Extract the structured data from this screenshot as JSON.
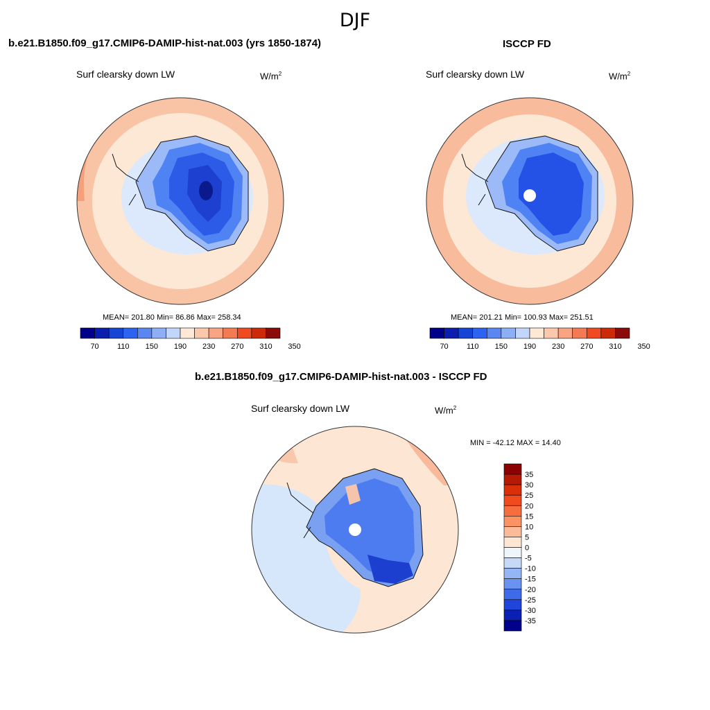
{
  "season": "DJF",
  "panels": [
    {
      "title": "b.e21.B1850.f09_g17.CMIP6-DAMIP-hist-nat.003 (yrs 1850-1874)",
      "variable": "Surf clearsky down LW",
      "units_base": "W/m",
      "units_exp": "2",
      "stats": "MEAN= 201.80  Min=  86.86  Max= 258.34"
    },
    {
      "title": "ISCCP FD",
      "variable": "Surf clearsky down LW",
      "units_base": "W/m",
      "units_exp": "2",
      "stats": "MEAN= 201.21  Min= 100.93  Max= 251.51"
    },
    {
      "title": "b.e21.B1850.f09_g17.CMIP6-DAMIP-hist-nat.003 - ISCCP FD",
      "variable": "Surf clearsky down LW",
      "units_base": "W/m",
      "units_exp": "2",
      "stats": "MIN = -42.12 MAX =  14.40"
    }
  ],
  "chart_data": [
    {
      "type": "heatmap",
      "projection": "south-polar-stereographic",
      "title": "b.e21.B1850.f09_g17.CMIP6-DAMIP-hist-nat.003 (yrs 1850-1874)",
      "variable": "Surf clearsky down LW",
      "units": "W/m2",
      "mean": 201.8,
      "min": 86.86,
      "max": 258.34,
      "colorbar_labels": [
        "70",
        "110",
        "150",
        "190",
        "230",
        "270",
        "310",
        "350"
      ],
      "colorbar_colors": [
        "#00008a",
        "#0a1fb0",
        "#1645d6",
        "#2c63f0",
        "#5a86f2",
        "#8eaef6",
        "#c2d6fb",
        "#ffe9d6",
        "#fcc8ac",
        "#f8a482",
        "#f47a53",
        "#ef4a20",
        "#cd2a0a",
        "#8b0a0a"
      ]
    },
    {
      "type": "heatmap",
      "projection": "south-polar-stereographic",
      "title": "ISCCP FD",
      "variable": "Surf clearsky down LW",
      "units": "W/m2",
      "mean": 201.21,
      "min": 100.93,
      "max": 251.51,
      "colorbar_labels": [
        "70",
        "110",
        "150",
        "190",
        "230",
        "270",
        "310",
        "350"
      ],
      "colorbar_colors": [
        "#00008a",
        "#0a1fb0",
        "#1645d6",
        "#2c63f0",
        "#5a86f2",
        "#8eaef6",
        "#c2d6fb",
        "#ffe9d6",
        "#fcc8ac",
        "#f8a482",
        "#f47a53",
        "#ef4a20",
        "#cd2a0a",
        "#8b0a0a"
      ]
    },
    {
      "type": "heatmap",
      "projection": "south-polar-stereographic",
      "title": "b.e21.B1850.f09_g17.CMIP6-DAMIP-hist-nat.003 - ISCCP FD",
      "variable": "Surf clearsky down LW",
      "units": "W/m2",
      "min": -42.12,
      "max": 14.4,
      "colorbar_labels": [
        "35",
        "30",
        "25",
        "20",
        "15",
        "10",
        "5",
        "0",
        "-5",
        "-10",
        "-15",
        "-20",
        "-25",
        "-30",
        "-35"
      ],
      "colorbar_colors": [
        "#8b0000",
        "#b51a05",
        "#d9300a",
        "#f04a1e",
        "#f76d3d",
        "#fa9264",
        "#fcbb98",
        "#fde6d4",
        "#eef5fb",
        "#c6daf8",
        "#95b6f4",
        "#6a92f0",
        "#3f6aea",
        "#1f45db",
        "#0a20b5",
        "#00008a"
      ]
    }
  ]
}
